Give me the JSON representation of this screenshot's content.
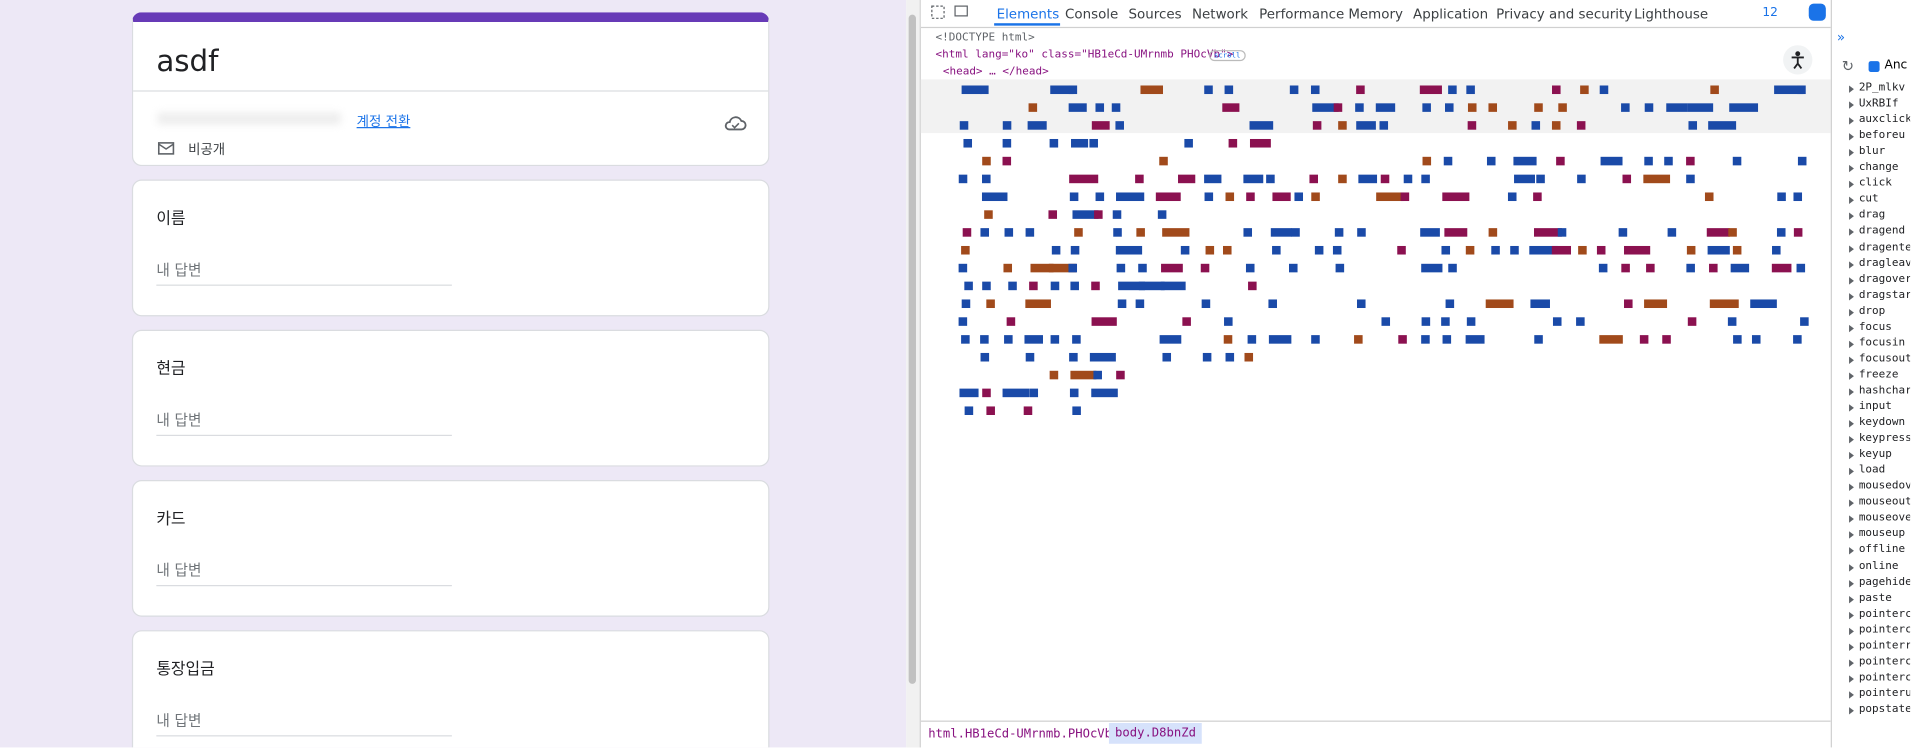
{
  "form": {
    "title": "asdf",
    "account_switch": "계정 전환",
    "visibility": "비공개",
    "questions": [
      {
        "label": "이름",
        "placeholder": "내 답변"
      },
      {
        "label": "현금",
        "placeholder": "내 답변"
      },
      {
        "label": "카드",
        "placeholder": "내 답변"
      },
      {
        "label": "통장입금",
        "placeholder": "내 답변"
      }
    ]
  },
  "devtools": {
    "tabs": [
      "Elements",
      "Console",
      "Sources",
      "Network",
      "Performance",
      "Memory",
      "Application",
      "Privacy and security",
      "Lighthouse"
    ],
    "issues_count": 12,
    "doctype": "<!DOCTYPE html>",
    "html_tag": "<html lang=\"ko\" class=\"HB1eCd-UMrnmb PHOcVb\">",
    "scroll_badge": "scroll",
    "head_line": "<head> … </head>",
    "breadcrumbs": [
      "html.HB1eCd-UMrnmb.PHOcVb",
      "body.D8bnZd"
    ],
    "sidebar": {
      "filter_label": "Anc",
      "events": [
        "2P_mlkv",
        "UxRBIf",
        "auxclick",
        "beforeu",
        "blur",
        "change",
        "click",
        "cut",
        "drag",
        "dragend",
        "dragente",
        "dragleav",
        "dragover",
        "dragstar",
        "drop",
        "focus",
        "focusin",
        "focusout",
        "freeze",
        "hashchar",
        "input",
        "keydown",
        "keypress",
        "keyup",
        "load",
        "mousedov",
        "mouseout",
        "mouseove",
        "mouseup",
        "offline",
        "online",
        "pagehide",
        "paste",
        "pointerc",
        "pointerc",
        "pointerr",
        "pointerc",
        "pointerc",
        "pointeru",
        "popstate"
      ]
    }
  }
}
